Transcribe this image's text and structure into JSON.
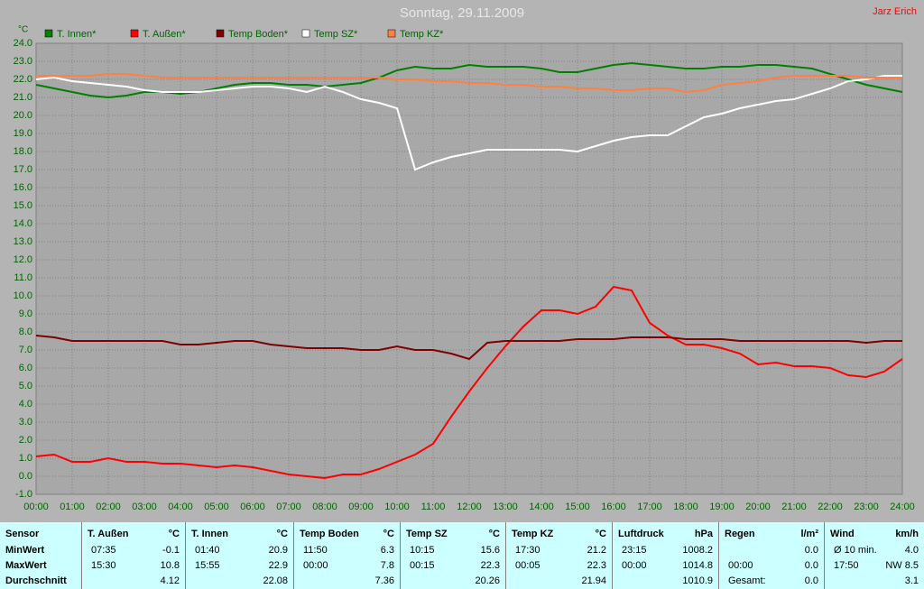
{
  "chart_data": {
    "type": "line",
    "title": "Sonntag, 29.11.2009",
    "author": "Jarz Erich",
    "ylabel": "°C",
    "x": [
      0,
      0.5,
      1,
      1.5,
      2,
      2.5,
      3,
      3.5,
      4,
      4.5,
      5,
      5.5,
      6,
      6.5,
      7,
      7.5,
      8,
      8.5,
      9,
      9.5,
      10,
      10.5,
      11,
      11.5,
      12,
      12.5,
      13,
      13.5,
      14,
      14.5,
      15,
      15.5,
      16,
      16.5,
      17,
      17.5,
      18,
      18.5,
      19,
      19.5,
      20,
      20.5,
      21,
      21.5,
      22,
      22.5,
      23,
      23.5,
      24
    ],
    "series": [
      {
        "name": "T. Innen*",
        "color": "#008000",
        "values": [
          21.7,
          21.5,
          21.3,
          21.1,
          21.0,
          21.1,
          21.3,
          21.3,
          21.2,
          21.3,
          21.5,
          21.7,
          21.8,
          21.8,
          21.7,
          21.7,
          21.6,
          21.7,
          21.8,
          22.1,
          22.5,
          22.7,
          22.6,
          22.6,
          22.8,
          22.7,
          22.7,
          22.7,
          22.6,
          22.4,
          22.4,
          22.6,
          22.8,
          22.9,
          22.8,
          22.7,
          22.6,
          22.6,
          22.7,
          22.7,
          22.8,
          22.8,
          22.7,
          22.6,
          22.3,
          22.0,
          21.7,
          21.5,
          21.3
        ]
      },
      {
        "name": "T. Außen*",
        "color": "#ff0000",
        "values": [
          1.1,
          1.2,
          0.8,
          0.8,
          1.0,
          0.8,
          0.8,
          0.7,
          0.7,
          0.6,
          0.5,
          0.6,
          0.5,
          0.3,
          0.1,
          0.0,
          -0.1,
          0.1,
          0.1,
          0.4,
          0.8,
          1.2,
          1.8,
          3.3,
          4.7,
          6.0,
          7.2,
          8.3,
          9.2,
          9.2,
          9.0,
          9.4,
          10.5,
          10.3,
          8.5,
          7.8,
          7.3,
          7.3,
          7.1,
          6.8,
          6.2,
          6.3,
          6.1,
          6.1,
          6.0,
          5.6,
          5.5,
          5.8,
          6.5
        ]
      },
      {
        "name": "Temp Boden*",
        "color": "#800000",
        "values": [
          7.8,
          7.7,
          7.5,
          7.5,
          7.5,
          7.5,
          7.5,
          7.5,
          7.3,
          7.3,
          7.4,
          7.5,
          7.5,
          7.3,
          7.2,
          7.1,
          7.1,
          7.1,
          7.0,
          7.0,
          7.2,
          7.0,
          7.0,
          6.8,
          6.5,
          7.4,
          7.5,
          7.5,
          7.5,
          7.5,
          7.6,
          7.6,
          7.6,
          7.7,
          7.7,
          7.7,
          7.6,
          7.6,
          7.6,
          7.5,
          7.5,
          7.5,
          7.5,
          7.5,
          7.5,
          7.5,
          7.4,
          7.5,
          7.5
        ]
      },
      {
        "name": "Temp SZ*",
        "color": "#ffffff",
        "values": [
          22.0,
          22.1,
          21.9,
          21.8,
          21.7,
          21.6,
          21.4,
          21.3,
          21.3,
          21.3,
          21.4,
          21.5,
          21.6,
          21.6,
          21.5,
          21.3,
          21.6,
          21.3,
          20.9,
          20.7,
          20.4,
          17.0,
          17.4,
          17.7,
          17.9,
          18.1,
          18.1,
          18.1,
          18.1,
          18.1,
          18.0,
          18.3,
          18.6,
          18.8,
          18.9,
          18.9,
          19.4,
          19.9,
          20.1,
          20.4,
          20.6,
          20.8,
          20.9,
          21.2,
          21.5,
          21.9,
          22.0,
          22.2,
          22.2
        ]
      },
      {
        "name": "Temp KZ*",
        "color": "#ff8040",
        "values": [
          22.2,
          22.2,
          22.2,
          22.2,
          22.3,
          22.3,
          22.2,
          22.1,
          22.1,
          22.1,
          22.1,
          22.1,
          22.1,
          22.1,
          22.1,
          22.1,
          22.1,
          22.1,
          22.1,
          22.1,
          22.0,
          22.0,
          21.9,
          21.9,
          21.8,
          21.8,
          21.7,
          21.7,
          21.6,
          21.6,
          21.5,
          21.5,
          21.4,
          21.4,
          21.5,
          21.5,
          21.3,
          21.4,
          21.7,
          21.8,
          21.9,
          22.1,
          22.2,
          22.2,
          22.2,
          22.2,
          22.1,
          22.1,
          22.1
        ]
      }
    ],
    "xlim": [
      0,
      24
    ],
    "xticks": [
      {
        "value": 0,
        "label": "00:00"
      },
      {
        "value": 1,
        "label": "01:00"
      },
      {
        "value": 2,
        "label": "02:00"
      },
      {
        "value": 3,
        "label": "03:00"
      },
      {
        "value": 4,
        "label": "04:00"
      },
      {
        "value": 5,
        "label": "05:00"
      },
      {
        "value": 6,
        "label": "06:00"
      },
      {
        "value": 7,
        "label": "07:00"
      },
      {
        "value": 8,
        "label": "08:00"
      },
      {
        "value": 9,
        "label": "09:00"
      },
      {
        "value": 10,
        "label": "10:00"
      },
      {
        "value": 11,
        "label": "11:00"
      },
      {
        "value": 12,
        "label": "12:00"
      },
      {
        "value": 13,
        "label": "13:00"
      },
      {
        "value": 14,
        "label": "14:00"
      },
      {
        "value": 15,
        "label": "15:00"
      },
      {
        "value": 16,
        "label": "16:00"
      },
      {
        "value": 17,
        "label": "17:00"
      },
      {
        "value": 18,
        "label": "18:00"
      },
      {
        "value": 19,
        "label": "19:00"
      },
      {
        "value": 20,
        "label": "20:00"
      },
      {
        "value": 21,
        "label": "21:00"
      },
      {
        "value": 22,
        "label": "22:00"
      },
      {
        "value": 23,
        "label": "23:00"
      },
      {
        "value": 24,
        "label": "24:00"
      }
    ],
    "ylim": [
      -1,
      24
    ],
    "yticks": [
      {
        "value": -1,
        "label": "-1.0"
      },
      {
        "value": 0,
        "label": "0.0"
      },
      {
        "value": 1,
        "label": "1.0"
      },
      {
        "value": 2,
        "label": "2.0"
      },
      {
        "value": 3,
        "label": "3.0"
      },
      {
        "value": 4,
        "label": "4.0"
      },
      {
        "value": 5,
        "label": "5.0"
      },
      {
        "value": 6,
        "label": "6.0"
      },
      {
        "value": 7,
        "label": "7.0"
      },
      {
        "value": 8,
        "label": "8.0"
      },
      {
        "value": 9,
        "label": "9.0"
      },
      {
        "value": 10,
        "label": "10.0"
      },
      {
        "value": 11,
        "label": "11.0"
      },
      {
        "value": 12,
        "label": "12.0"
      },
      {
        "value": 13,
        "label": "13.0"
      },
      {
        "value": 14,
        "label": "14.0"
      },
      {
        "value": 15,
        "label": "15.0"
      },
      {
        "value": 16,
        "label": "16.0"
      },
      {
        "value": 17,
        "label": "17.0"
      },
      {
        "value": 18,
        "label": "18.0"
      },
      {
        "value": 19,
        "label": "19.0"
      },
      {
        "value": 20,
        "label": "20.0"
      },
      {
        "value": 21,
        "label": "21.0"
      },
      {
        "value": 22,
        "label": "22.0"
      },
      {
        "value": 23,
        "label": "23.0"
      },
      {
        "value": 24,
        "label": "24.0"
      }
    ],
    "grid": true,
    "legend": "top"
  },
  "table": {
    "sensor_header": "Sensor",
    "row_labels": [
      "MinWert",
      "MaxWert",
      "Durchschnitt"
    ],
    "groups": [
      {
        "name": "T. Außen",
        "unit": "°C",
        "rows": [
          [
            "07:35",
            "-0.1"
          ],
          [
            "15:30",
            "10.8"
          ],
          [
            null,
            "4.12"
          ]
        ]
      },
      {
        "name": "T. Innen",
        "unit": "°C",
        "rows": [
          [
            "01:40",
            "20.9"
          ],
          [
            "15:55",
            "22.9"
          ],
          [
            null,
            "22.08"
          ]
        ]
      },
      {
        "name": "Temp Boden",
        "unit": "°C",
        "rows": [
          [
            "11:50",
            "6.3"
          ],
          [
            "00:00",
            "7.8"
          ],
          [
            null,
            "7.36"
          ]
        ]
      },
      {
        "name": "Temp SZ",
        "unit": "°C",
        "rows": [
          [
            "10:15",
            "15.6"
          ],
          [
            "00:15",
            "22.3"
          ],
          [
            null,
            "20.26"
          ]
        ]
      },
      {
        "name": "Temp KZ",
        "unit": "°C",
        "rows": [
          [
            "17:30",
            "21.2"
          ],
          [
            "00:05",
            "22.3"
          ],
          [
            null,
            "21.94"
          ]
        ]
      },
      {
        "name": "Luftdruck",
        "unit": "hPa",
        "rows": [
          [
            "23:15",
            "1008.2"
          ],
          [
            "00:00",
            "1014.8"
          ],
          [
            null,
            "1010.9"
          ]
        ]
      },
      {
        "name": "Regen",
        "unit": "l/m²",
        "rows": [
          [
            null,
            "0.0"
          ],
          [
            "00:00",
            "0.0"
          ],
          [
            "Gesamt:",
            "0.0"
          ]
        ]
      },
      {
        "name": "Wind",
        "unit": "km/h",
        "rows": [
          [
            "Ø 10 min.",
            "4.0"
          ],
          [
            "17:50",
            "NW 8.5"
          ],
          [
            null,
            "3.1"
          ]
        ]
      }
    ]
  }
}
